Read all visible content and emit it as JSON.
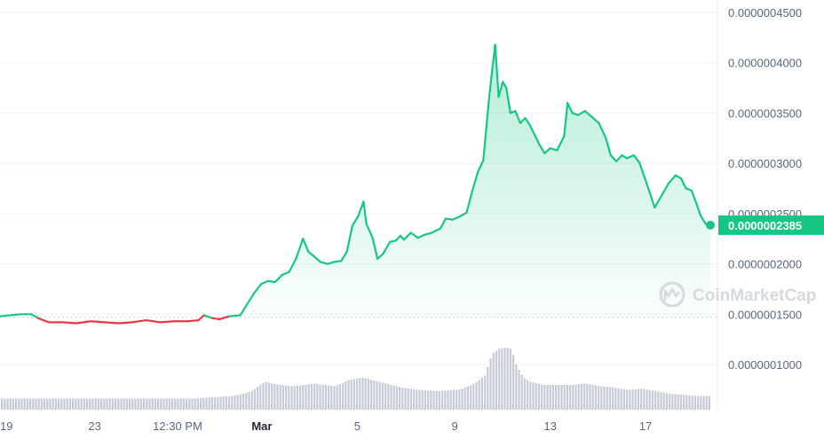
{
  "chart_data": {
    "type": "area",
    "watermark": "CoinMarketCap",
    "y_axis": {
      "ticks": [
        "0.0000004500",
        "0.0000004000",
        "0.0000003500",
        "0.0000003000",
        "0.0000002500",
        "0.0000002000",
        "0.0000001500",
        "0.0000001000"
      ],
      "tick_values": [
        4.5e-07,
        4e-07,
        3.5e-07,
        3e-07,
        2.5e-07,
        2e-07,
        1.5e-07,
        1e-07
      ],
      "range": [
        9.5e-08,
        4.5e-07
      ]
    },
    "x_axis": {
      "labels": [
        {
          "label": "19",
          "bold": false,
          "t": 0.0
        },
        {
          "label": "23",
          "bold": false,
          "t": 13.6
        },
        {
          "label": "12:30 PM",
          "bold": false,
          "t": 25.5
        },
        {
          "label": "Mar",
          "bold": true,
          "t": 37.6
        },
        {
          "label": "5",
          "bold": false,
          "t": 51.3
        },
        {
          "label": "9",
          "bold": false,
          "t": 65.3
        },
        {
          "label": "13",
          "bold": false,
          "t": 79.0
        },
        {
          "label": "17",
          "bold": false,
          "t": 92.7
        }
      ],
      "range": [
        0,
        102
      ]
    },
    "baseline": 1.47e-07,
    "current_price": {
      "label": "0.0000002385",
      "value": 2.385e-07
    },
    "colors": {
      "up": "#16c784",
      "down": "#ea3943",
      "badge": "#16c784"
    },
    "series": [
      {
        "values": [
          [
            0,
            1.48e-07
          ],
          [
            1.5,
            1.49e-07
          ],
          [
            3,
            1.5e-07
          ],
          [
            4.5,
            1.5e-07
          ],
          [
            5.5,
            1.46e-07
          ],
          [
            7,
            1.42e-07
          ],
          [
            9,
            1.42e-07
          ],
          [
            11,
            1.41e-07
          ],
          [
            13,
            1.43e-07
          ],
          [
            15,
            1.42e-07
          ],
          [
            17,
            1.41e-07
          ],
          [
            19,
            1.42e-07
          ],
          [
            21,
            1.44e-07
          ],
          [
            23,
            1.42e-07
          ],
          [
            25,
            1.43e-07
          ],
          [
            27,
            1.43e-07
          ],
          [
            28.5,
            1.44e-07
          ],
          [
            29.3,
            1.49e-07
          ],
          [
            30.5,
            1.46e-07
          ],
          [
            31.5,
            1.45e-07
          ],
          [
            33,
            1.48e-07
          ],
          [
            34.5,
            1.49e-07
          ],
          [
            35.5,
            1.6e-07
          ],
          [
            36.5,
            1.71e-07
          ],
          [
            37.5,
            1.8e-07
          ],
          [
            38.5,
            1.83e-07
          ],
          [
            39.5,
            1.82e-07
          ],
          [
            40.5,
            1.89e-07
          ],
          [
            41.5,
            1.92e-07
          ],
          [
            42.5,
            2.05e-07
          ],
          [
            43.5,
            2.25e-07
          ],
          [
            44.3,
            2.12e-07
          ],
          [
            45,
            2.08e-07
          ],
          [
            46,
            2.02e-07
          ],
          [
            47,
            2e-07
          ],
          [
            48,
            2.02e-07
          ],
          [
            49,
            2.03e-07
          ],
          [
            49.8,
            2.12e-07
          ],
          [
            50.6,
            2.38e-07
          ],
          [
            51.4,
            2.47e-07
          ],
          [
            52.2,
            2.62e-07
          ],
          [
            52.6,
            2.4e-07
          ],
          [
            53.5,
            2.26e-07
          ],
          [
            54.2,
            2.05e-07
          ],
          [
            55,
            2.1e-07
          ],
          [
            56,
            2.22e-07
          ],
          [
            56.8,
            2.23e-07
          ],
          [
            57.5,
            2.28e-07
          ],
          [
            58,
            2.24e-07
          ],
          [
            59,
            2.31e-07
          ],
          [
            60,
            2.26e-07
          ],
          [
            61,
            2.29e-07
          ],
          [
            62,
            2.31e-07
          ],
          [
            63.2,
            2.35e-07
          ],
          [
            64,
            2.45e-07
          ],
          [
            65,
            2.44e-07
          ],
          [
            66,
            2.47e-07
          ],
          [
            67,
            2.51e-07
          ],
          [
            67.8,
            2.72e-07
          ],
          [
            68.6,
            2.91e-07
          ],
          [
            69.4,
            3.03e-07
          ],
          [
            70.2,
            3.63e-07
          ],
          [
            70.7,
            3.94e-07
          ],
          [
            71.1,
            4.18e-07
          ],
          [
            71.6,
            3.66e-07
          ],
          [
            72.2,
            3.81e-07
          ],
          [
            72.7,
            3.75e-07
          ],
          [
            73.3,
            3.5e-07
          ],
          [
            74,
            3.52e-07
          ],
          [
            74.7,
            3.4e-07
          ],
          [
            75.4,
            3.45e-07
          ],
          [
            76,
            3.39e-07
          ],
          [
            76.8,
            3.28e-07
          ],
          [
            77.5,
            3.18e-07
          ],
          [
            78.2,
            3.1e-07
          ],
          [
            79,
            3.15e-07
          ],
          [
            80,
            3.13e-07
          ],
          [
            81,
            3.27e-07
          ],
          [
            81.5,
            3.6e-07
          ],
          [
            82.2,
            3.5e-07
          ],
          [
            83,
            3.48e-07
          ],
          [
            84,
            3.52e-07
          ],
          [
            85,
            3.46e-07
          ],
          [
            86,
            3.4e-07
          ],
          [
            87,
            3.25e-07
          ],
          [
            87.7,
            3.08e-07
          ],
          [
            88.5,
            3.02e-07
          ],
          [
            89.3,
            3.08e-07
          ],
          [
            90,
            3.05e-07
          ],
          [
            91,
            3.08e-07
          ],
          [
            91.8,
            3.01e-07
          ],
          [
            92.6,
            2.85e-07
          ],
          [
            93.2,
            2.73e-07
          ],
          [
            94,
            2.56e-07
          ],
          [
            95,
            2.68e-07
          ],
          [
            96,
            2.8e-07
          ],
          [
            97,
            2.88e-07
          ],
          [
            97.8,
            2.85e-07
          ],
          [
            98.5,
            2.75e-07
          ],
          [
            99.3,
            2.73e-07
          ],
          [
            100,
            2.6e-07
          ],
          [
            100.6,
            2.48e-07
          ],
          [
            101.3,
            2.4e-07
          ],
          [
            102,
            2.385e-07
          ]
        ]
      }
    ],
    "volume": {
      "values": [
        [
          0,
          0.18
        ],
        [
          5,
          0.18
        ],
        [
          10,
          0.18
        ],
        [
          15,
          0.18
        ],
        [
          20,
          0.18
        ],
        [
          25,
          0.18
        ],
        [
          28,
          0.18
        ],
        [
          30,
          0.2
        ],
        [
          33,
          0.22
        ],
        [
          35,
          0.26
        ],
        [
          36,
          0.3
        ],
        [
          37,
          0.38
        ],
        [
          38,
          0.45
        ],
        [
          39,
          0.42
        ],
        [
          40,
          0.4
        ],
        [
          42,
          0.38
        ],
        [
          45,
          0.42
        ],
        [
          48,
          0.38
        ],
        [
          50,
          0.48
        ],
        [
          52,
          0.52
        ],
        [
          54,
          0.46
        ],
        [
          56,
          0.4
        ],
        [
          58,
          0.35
        ],
        [
          60,
          0.32
        ],
        [
          63,
          0.3
        ],
        [
          66,
          0.33
        ],
        [
          68,
          0.42
        ],
        [
          69.5,
          0.55
        ],
        [
          70.5,
          0.9
        ],
        [
          71.5,
          0.98
        ],
        [
          72.5,
          1.0
        ],
        [
          73.3,
          0.98
        ],
        [
          74,
          0.72
        ],
        [
          75,
          0.52
        ],
        [
          76,
          0.45
        ],
        [
          78,
          0.4
        ],
        [
          80,
          0.4
        ],
        [
          82,
          0.4
        ],
        [
          84,
          0.42
        ],
        [
          86,
          0.38
        ],
        [
          88,
          0.36
        ],
        [
          90,
          0.32
        ],
        [
          92,
          0.34
        ],
        [
          94,
          0.3
        ],
        [
          96,
          0.26
        ],
        [
          98,
          0.24
        ],
        [
          100,
          0.22
        ],
        [
          102,
          0.22
        ]
      ]
    }
  }
}
